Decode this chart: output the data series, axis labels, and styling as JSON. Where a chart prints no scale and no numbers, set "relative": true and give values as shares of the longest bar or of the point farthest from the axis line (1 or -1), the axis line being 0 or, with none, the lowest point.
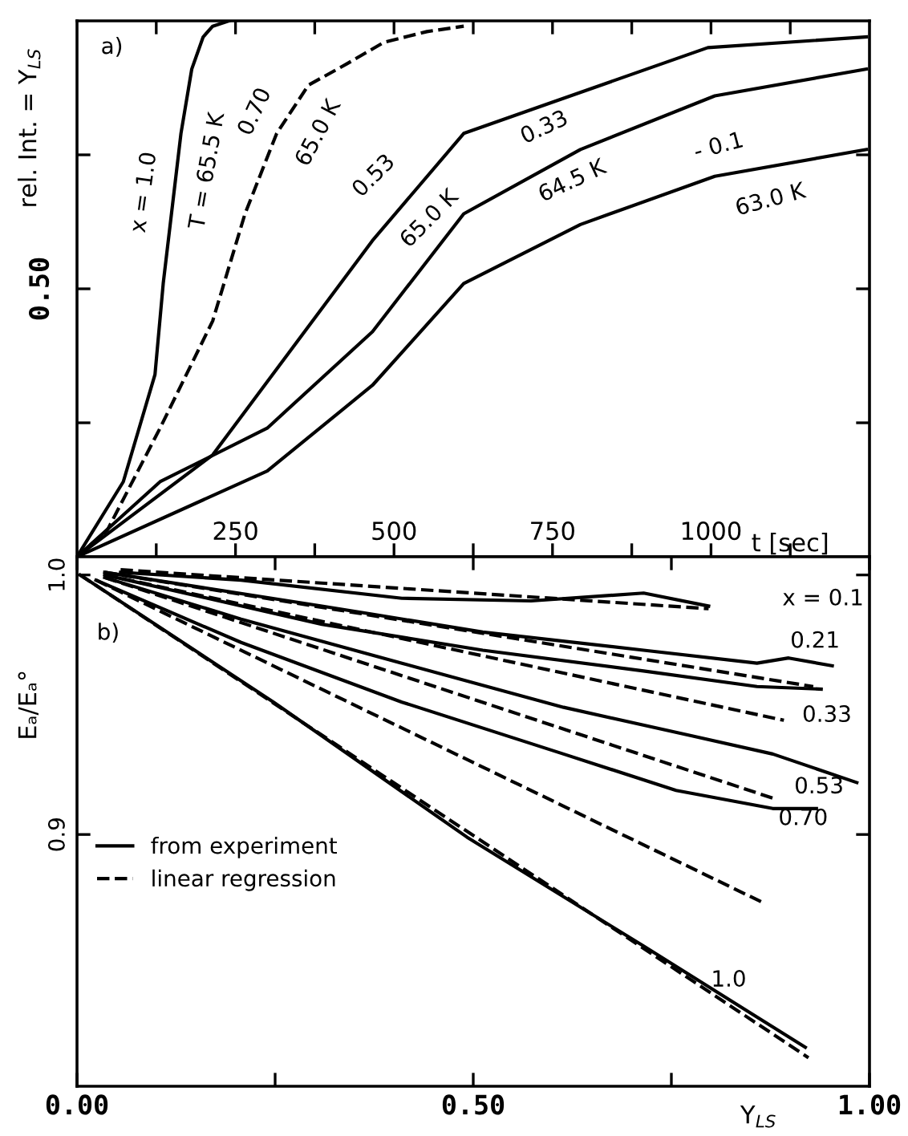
{
  "chart_data": [
    {
      "type": "line",
      "relative": true,
      "ylabel": "rel. Int. = Y$_{LS}$",
      "xlabel": "t [sec]",
      "xlim": [
        0,
        1250
      ],
      "xticks": [
        {
          "value": 125,
          "label": null
        },
        250,
        {
          "value": 375,
          "label": null
        },
        500,
        {
          "value": 625,
          "label": null
        },
        750,
        {
          "value": 875,
          "label": null
        },
        1000,
        {
          "value": 1125,
          "label": null
        }
      ],
      "grid": false,
      "series": [
        {
          "color": "#000000",
          "line_style": "solid",
          "x": [
            0,
            73,
            123,
            136,
            149,
            164,
            181,
            199,
            214,
            240
          ],
          "values": [
            0,
            0.14,
            0.34,
            0.51,
            0.64,
            0.79,
            0.91,
            0.97,
            0.99,
            1.0
          ]
        },
        {
          "color": "#000000",
          "line_style": "dashed",
          "x": [
            0,
            48,
            131,
            214,
            265,
            315,
            365,
            426,
            484,
            552,
            610
          ],
          "values": [
            0,
            0.05,
            0.24,
            0.44,
            0.64,
            0.79,
            0.88,
            0.92,
            0.96,
            0.98,
            0.99
          ]
        },
        {
          "color": "#000000",
          "line_style": "solid",
          "x": [
            0,
            214,
            340,
            466,
            610,
            754,
            995,
            1245
          ],
          "values": [
            0,
            0.19,
            0.39,
            0.59,
            0.79,
            0.85,
            0.95,
            0.97
          ]
        },
        {
          "color": "#000000",
          "line_style": "solid",
          "x": [
            0,
            131,
            300,
            466,
            610,
            794,
            1006,
            1245
          ],
          "values": [
            0,
            0.14,
            0.24,
            0.42,
            0.64,
            0.76,
            0.86,
            0.91
          ]
        },
        {
          "color": "#000000",
          "line_style": "solid",
          "x": [
            0,
            300,
            466,
            610,
            794,
            1006,
            1245
          ],
          "values": [
            0,
            0.16,
            0.32,
            0.51,
            0.62,
            0.71,
            0.76
          ]
        }
      ],
      "annotations": [
        "0.50",
        "a)",
        "x = 1.0",
        "T = 65.5 K",
        "0.70",
        "65.0 K",
        "0.53",
        "65.0 K",
        "0.33",
        "64.5 K",
        "- 0.1",
        "63.0 K"
      ]
    },
    {
      "type": "line",
      "ylabel": "Eₐ/Eₐ°",
      "xlabel": "Y$_{LS}$",
      "xlim": [
        0,
        1.0
      ],
      "ylim": [
        0.803,
        1.007
      ],
      "xticks": [
        {
          "value": 0,
          "label": "0.00"
        },
        {
          "value": 0.25,
          "label": null
        },
        {
          "value": 0.5,
          "label": "0.50"
        },
        {
          "value": 0.75,
          "label": null
        },
        {
          "value": 1.0,
          "label": "1.00"
        }
      ],
      "yticks": [
        0.9,
        {
          "value": 1.0,
          "label": "1.0"
        }
      ],
      "grid": false,
      "legend": "left",
      "series": [
        {
          "color": "#000000",
          "line_style": "solid",
          "x": [
            0.055,
            0.207,
            0.41,
            0.573,
            0.715,
            0.797
          ],
          "values": [
            1.001,
            0.998,
            0.991,
            0.99,
            0.993,
            0.988
          ]
        },
        {
          "color": "#000000",
          "line_style": "dashed",
          "x": [
            0.055,
            0.797
          ],
          "values": [
            1.002,
            0.987
          ]
        },
        {
          "color": "#000000",
          "line_style": "solid",
          "x": [
            0.035,
            0.309,
            0.512,
            0.715,
            0.858,
            0.898,
            0.953
          ],
          "values": [
            1.001,
            0.988,
            0.978,
            0.971,
            0.966,
            0.968,
            0.965
          ]
        },
        {
          "color": "#000000",
          "line_style": "dashed",
          "x": [
            0.035,
            0.929
          ],
          "values": [
            1.001,
            0.957
          ]
        },
        {
          "color": "#000000",
          "line_style": "solid",
          "x": [
            0.035,
            0.309,
            0.512,
            0.715,
            0.858,
            0.939
          ],
          "values": [
            1.0,
            0.981,
            0.971,
            0.963,
            0.957,
            0.956
          ]
        },
        {
          "color": "#000000",
          "line_style": "dashed",
          "x": [
            0.035,
            0.892
          ],
          "values": [
            1.0,
            0.944
          ]
        },
        {
          "color": "#000000",
          "line_style": "solid",
          "x": [
            0.035,
            0.207,
            0.41,
            0.614,
            0.776,
            0.878,
            0.984
          ],
          "values": [
            0.999,
            0.983,
            0.966,
            0.949,
            0.938,
            0.931,
            0.92
          ]
        },
        {
          "color": "#000000",
          "line_style": "dashed",
          "x": [
            0.035,
            0.878
          ],
          "values": [
            0.999,
            0.914
          ]
        },
        {
          "color": "#000000",
          "line_style": "solid",
          "x": [
            0.024,
            0.207,
            0.41,
            0.614,
            0.756,
            0.878,
            0.933
          ],
          "values": [
            0.998,
            0.974,
            0.951,
            0.931,
            0.917,
            0.91,
            0.91
          ]
        },
        {
          "color": "#000000",
          "line_style": "dashed",
          "x": [
            0.024,
            0.864
          ],
          "values": [
            0.998,
            0.874
          ]
        },
        {
          "name": "from experiment",
          "color": "#000000",
          "line_style": "solid",
          "x": [
            0.004,
            0.248,
            0.492,
            0.715,
            0.919
          ],
          "values": [
            1.0,
            0.951,
            0.899,
            0.857,
            0.818
          ]
        },
        {
          "name": "linear regression",
          "color": "#000000",
          "line_style": "dashed",
          "x": [
            0.004,
            0.923
          ],
          "values": [
            1.0,
            0.814
          ]
        }
      ],
      "annotations": [
        "x = 0.1",
        "0.21",
        "0.33",
        "0.53",
        "0.70",
        "1.0",
        "b)"
      ]
    }
  ]
}
